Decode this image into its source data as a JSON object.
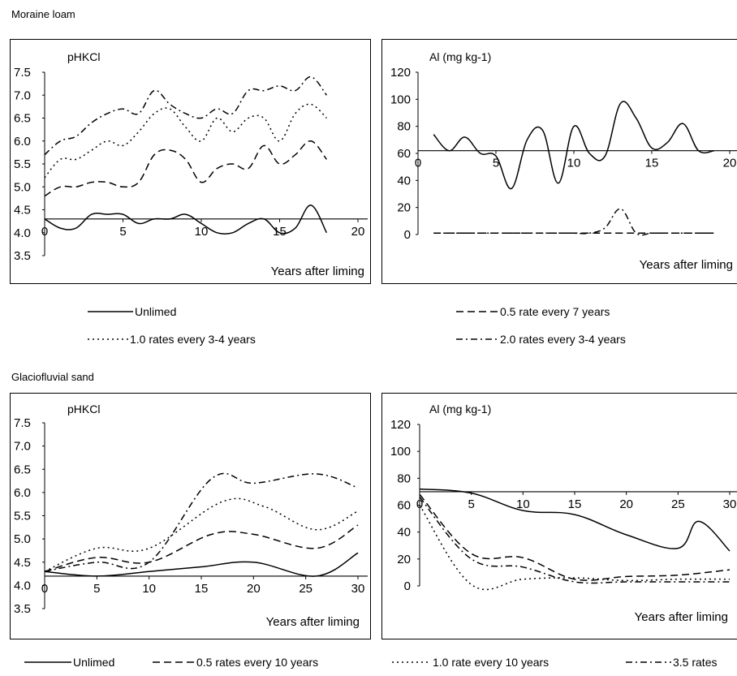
{
  "sections": {
    "top": "Moraine loam",
    "bottom": "Glaciofluvial sand"
  },
  "legends": {
    "top": [
      "Unlimed",
      "0.5 rate every 7 years",
      "1.0 rates every 3-4 years",
      "2.0 rates every 3-4 years"
    ],
    "bottom": [
      "Unlimed",
      "0.5 rates every 10 years",
      "1.0 rate every 10 years",
      "3.5 rates"
    ]
  },
  "chart_data": [
    {
      "id": "moraine-ph",
      "type": "line",
      "title": "pHKCl",
      "xlabel": "Years after liming",
      "ylabel": "",
      "xlim": [
        0,
        20
      ],
      "ylim": [
        3.5,
        7.5
      ],
      "x_ticks": [
        0,
        5,
        10,
        15,
        20
      ],
      "y_ticks": [
        3.5,
        4.0,
        4.5,
        5.0,
        5.5,
        6.0,
        6.5,
        7.0,
        7.5
      ],
      "y_tick_labels": [
        "3.5",
        "4.0",
        "4.5",
        "5.0",
        "5.5",
        "6.0",
        "6.5",
        "7.0",
        "7.5"
      ],
      "x_axis_at": 4.3,
      "series": [
        {
          "style": "solid",
          "x": [
            0,
            1,
            2,
            3,
            4,
            5,
            6,
            7,
            8,
            9,
            10,
            11,
            12,
            13,
            14,
            15,
            16,
            17,
            18
          ],
          "values": [
            4.3,
            4.1,
            4.1,
            4.4,
            4.4,
            4.4,
            4.2,
            4.3,
            4.3,
            4.4,
            4.2,
            4.0,
            4.0,
            4.2,
            4.3,
            4.0,
            4.1,
            4.6,
            4.0
          ]
        },
        {
          "style": "dash",
          "x": [
            0,
            1,
            2,
            3,
            4,
            5,
            6,
            7,
            8,
            9,
            10,
            11,
            12,
            13,
            14,
            15,
            16,
            17,
            18
          ],
          "values": [
            4.8,
            5.0,
            5.0,
            5.1,
            5.1,
            5.0,
            5.1,
            5.7,
            5.8,
            5.6,
            5.1,
            5.4,
            5.5,
            5.4,
            5.9,
            5.5,
            5.7,
            6.0,
            5.6
          ]
        },
        {
          "style": "dot",
          "x": [
            0,
            1,
            2,
            3,
            4,
            5,
            6,
            7,
            8,
            9,
            10,
            11,
            12,
            13,
            14,
            15,
            16,
            17,
            18
          ],
          "values": [
            5.2,
            5.6,
            5.6,
            5.8,
            6.0,
            5.9,
            6.2,
            6.6,
            6.7,
            6.3,
            6.0,
            6.5,
            6.2,
            6.5,
            6.5,
            6.0,
            6.6,
            6.8,
            6.5
          ]
        },
        {
          "style": "dashdot",
          "x": [
            0,
            1,
            2,
            3,
            4,
            5,
            6,
            7,
            8,
            9,
            10,
            11,
            12,
            13,
            14,
            15,
            16,
            17,
            18
          ],
          "values": [
            5.7,
            6.0,
            6.1,
            6.4,
            6.6,
            6.7,
            6.6,
            7.1,
            6.8,
            6.6,
            6.5,
            6.7,
            6.6,
            7.1,
            7.1,
            7.2,
            7.1,
            7.4,
            7.0
          ]
        }
      ]
    },
    {
      "id": "moraine-al",
      "type": "line",
      "title": "Al (mg kg-1)",
      "xlabel": "Years after liming",
      "ylabel": "",
      "xlim": [
        0,
        20
      ],
      "ylim": [
        0,
        120
      ],
      "x_ticks": [
        0,
        5,
        10,
        15,
        20
      ],
      "y_ticks": [
        0,
        20,
        40,
        60,
        80,
        100,
        120
      ],
      "y_tick_labels": [
        "0",
        "20",
        "40",
        "60",
        "80",
        "100",
        "120"
      ],
      "x_axis_at": 62,
      "series": [
        {
          "style": "solid",
          "x": [
            1,
            2,
            3,
            4,
            5,
            6,
            7,
            8,
            9,
            10,
            11,
            12,
            13,
            14,
            15,
            16,
            17,
            18,
            19
          ],
          "values": [
            74,
            62,
            72,
            60,
            58,
            34,
            70,
            77,
            38,
            80,
            60,
            58,
            97,
            86,
            64,
            68,
            82,
            62,
            62
          ]
        },
        {
          "style": "dash",
          "x": [
            1,
            2,
            3,
            4,
            5,
            6,
            7,
            8,
            9,
            10,
            11,
            12,
            13,
            14,
            15,
            16,
            17,
            18,
            19
          ],
          "values": [
            1,
            1,
            1,
            1,
            1,
            1,
            1,
            1,
            1,
            1,
            1,
            1,
            1,
            1,
            1,
            1,
            1,
            1,
            1
          ]
        },
        {
          "style": "dashdot",
          "x": [
            1,
            2,
            3,
            4,
            5,
            6,
            7,
            8,
            9,
            10,
            11,
            12,
            13,
            14,
            15,
            16,
            17,
            18,
            19
          ],
          "values": [
            1,
            1,
            1,
            1,
            1,
            1,
            1,
            1,
            1,
            1,
            1,
            5,
            19,
            1,
            1,
            1,
            1,
            1,
            1
          ]
        }
      ]
    },
    {
      "id": "sand-ph",
      "type": "line",
      "title": "pHKCl",
      "xlabel": "Years after liming",
      "ylabel": "",
      "xlim": [
        0,
        30
      ],
      "ylim": [
        3.5,
        7.5
      ],
      "x_ticks": [
        0,
        5,
        10,
        15,
        20,
        25,
        30
      ],
      "y_ticks": [
        3.5,
        4.0,
        4.5,
        5.0,
        5.5,
        6.0,
        6.5,
        7.0,
        7.5
      ],
      "y_tick_labels": [
        "3.5",
        "4.0",
        "4.5",
        "5.0",
        "5.5",
        "6.0",
        "6.5",
        "7.0",
        "7.5"
      ],
      "x_axis_at": 4.2,
      "series": [
        {
          "style": "solid",
          "x": [
            0,
            5,
            10,
            15,
            20,
            26,
            30
          ],
          "values": [
            4.3,
            4.2,
            4.3,
            4.4,
            4.5,
            4.2,
            4.7
          ]
        },
        {
          "style": "dash",
          "x": [
            0,
            5,
            10,
            16,
            20,
            26,
            30
          ],
          "values": [
            4.3,
            4.6,
            4.5,
            5.1,
            5.1,
            4.8,
            5.3
          ]
        },
        {
          "style": "dot",
          "x": [
            0,
            5,
            10,
            17,
            21,
            26,
            30
          ],
          "values": [
            4.3,
            4.8,
            4.8,
            5.8,
            5.7,
            5.2,
            5.6
          ]
        },
        {
          "style": "dashdot",
          "x": [
            0,
            5,
            10,
            16,
            20,
            26,
            30
          ],
          "values": [
            4.3,
            4.5,
            4.5,
            6.3,
            6.2,
            6.4,
            6.1
          ]
        }
      ]
    },
    {
      "id": "sand-al",
      "type": "line",
      "title": "Al (mg kg-1)",
      "xlabel": "Years after liming",
      "ylabel": "",
      "xlim": [
        0,
        30
      ],
      "ylim": [
        0,
        120
      ],
      "x_ticks": [
        0,
        5,
        10,
        15,
        20,
        25,
        30
      ],
      "y_ticks": [
        0,
        20,
        40,
        60,
        80,
        100,
        120
      ],
      "y_tick_labels": [
        "0",
        "20",
        "40",
        "60",
        "80",
        "100",
        "120"
      ],
      "x_axis_at": 70,
      "series": [
        {
          "style": "solid",
          "x": [
            0,
            5,
            10,
            15,
            20,
            25,
            27,
            30
          ],
          "values": [
            72,
            69,
            56,
            53,
            38,
            28,
            48,
            26
          ]
        },
        {
          "style": "dash",
          "x": [
            0,
            5,
            10,
            15,
            20,
            25,
            30
          ],
          "values": [
            68,
            24,
            21,
            5,
            7,
            8,
            12
          ]
        },
        {
          "style": "dot",
          "x": [
            0,
            5,
            10,
            15,
            20,
            25,
            30
          ],
          "values": [
            60,
            1,
            5,
            6,
            4,
            5,
            5
          ]
        },
        {
          "style": "dashdot",
          "x": [
            0,
            5,
            10,
            15,
            20,
            25,
            30
          ],
          "values": [
            66,
            20,
            14,
            3,
            3,
            3,
            3
          ]
        }
      ]
    }
  ]
}
